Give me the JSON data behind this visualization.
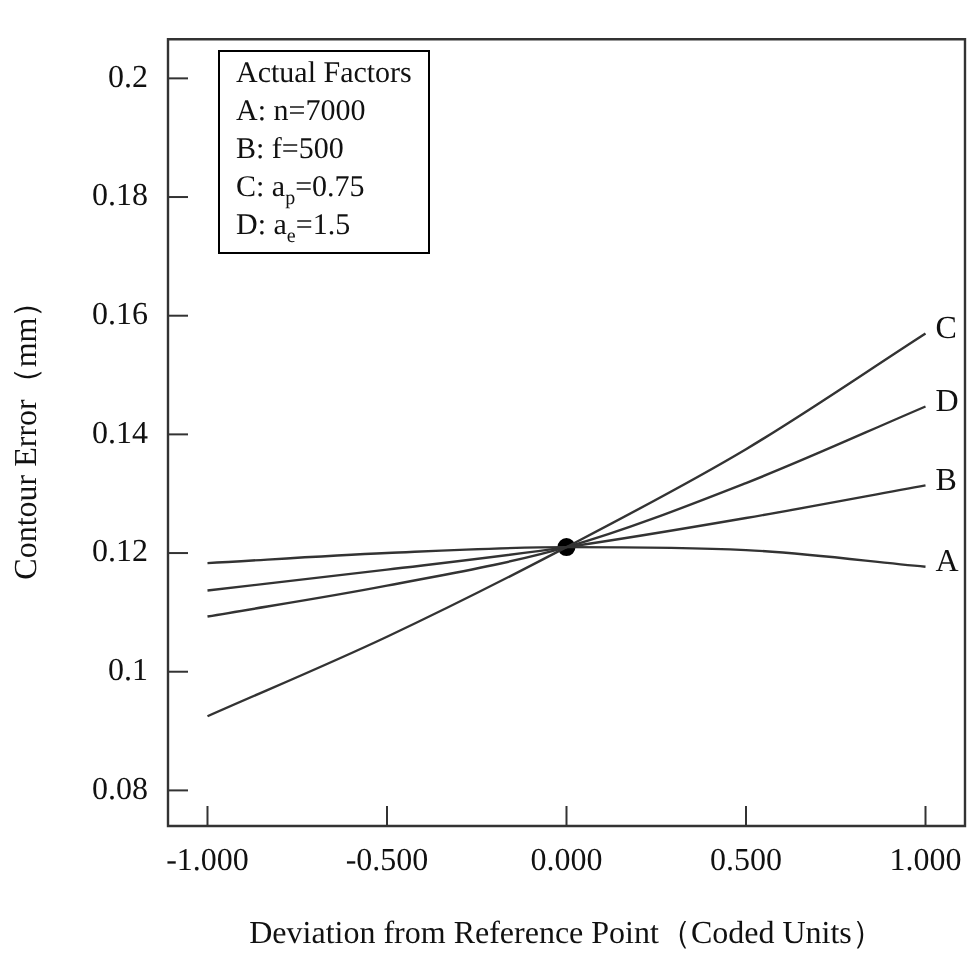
{
  "chart_data": {
    "type": "line",
    "xlabel": "Deviation from Reference Point（Coded Units）",
    "ylabel": "Contour Error（mm）",
    "x": [
      -1,
      -0.5,
      0,
      0.5,
      1
    ],
    "series": [
      {
        "name": "A",
        "color": "#333333",
        "values": [
          0.1183,
          0.12,
          0.121,
          0.1205,
          0.1177
        ]
      },
      {
        "name": "B",
        "color": "#333333",
        "values": [
          0.1137,
          0.1172,
          0.121,
          0.1259,
          0.1314
        ]
      },
      {
        "name": "C",
        "color": "#333333",
        "values": [
          0.0925,
          0.1059,
          0.121,
          0.1375,
          0.157
        ]
      },
      {
        "name": "D",
        "color": "#333333",
        "values": [
          0.1093,
          0.1145,
          0.121,
          0.1318,
          0.1447
        ]
      },
      {
        "type": "scatter",
        "marker": "circle",
        "color": "#000000",
        "x": [
          0
        ],
        "values": [
          0.121
        ]
      }
    ],
    "annotations": [
      "Actual Factors",
      "A: n=7000",
      "B: f=500",
      "C: a$_{p}$=0.75",
      "D: a$_{e}$=1.5"
    ],
    "xlim": [
      -1.11,
      1.11
    ],
    "xticks": [
      {
        "value": -1,
        "label": "-1.000"
      },
      {
        "value": -0.5,
        "label": "-0.500"
      },
      {
        "value": 0,
        "label": "0.000"
      },
      {
        "value": 0.5,
        "label": "0.500"
      },
      {
        "value": 1,
        "label": "1.000"
      }
    ],
    "ylim": [
      0.074,
      0.2066
    ],
    "yticks": [
      0.08,
      0.1,
      0.12,
      0.14,
      0.16,
      0.18,
      0.2
    ],
    "grid": false,
    "legend": false,
    "line_style": "solid"
  }
}
